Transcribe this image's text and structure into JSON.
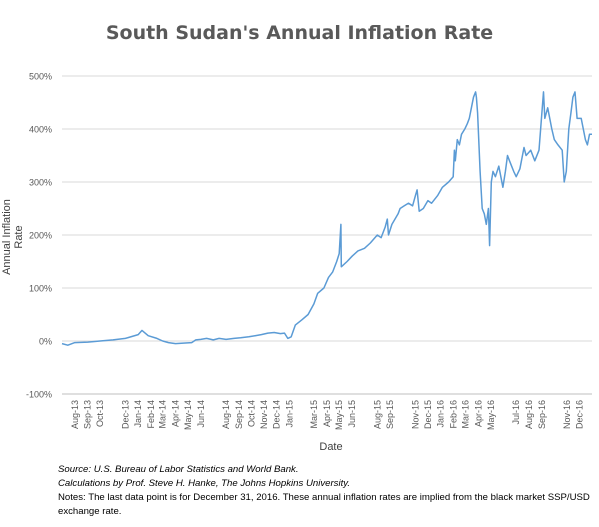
{
  "chart_data": {
    "type": "line",
    "title": "South Sudan's Annual Inflation Rate",
    "xlabel": "Date",
    "ylabel": "Annual Inflation Rate",
    "ylim": [
      -100,
      500
    ],
    "y_ticks": [
      "-100%",
      "0%",
      "100%",
      "200%",
      "300%",
      "400%",
      "500%"
    ],
    "y_tick_values": [
      -100,
      0,
      100,
      200,
      300,
      400,
      500
    ],
    "x_ticks": [
      "Aug-13",
      "Sep-13",
      "Oct-13",
      "Dec-13",
      "Jan-14",
      "Feb-14",
      "Mar-14",
      "Apr-14",
      "May-14",
      "Jun-14",
      "Aug-14",
      "Sep-14",
      "Oct-14",
      "Nov-14",
      "Dec-14",
      "Jan-15",
      "Mar-15",
      "Apr-15",
      "May-15",
      "Jun-15",
      "Aug-15",
      "Sep-15",
      "Nov-15",
      "Dec-15",
      "Jan-16",
      "Feb-16",
      "Mar-16",
      "Apr-16",
      "May-16",
      "Jul-16",
      "Aug-16",
      "Sep-16",
      "Nov-16",
      "Dec-16"
    ],
    "x_tick_dates": [
      "2013-08-01",
      "2013-09-01",
      "2013-10-01",
      "2013-12-01",
      "2014-01-01",
      "2014-02-01",
      "2014-03-01",
      "2014-04-01",
      "2014-05-01",
      "2014-06-01",
      "2014-08-01",
      "2014-09-01",
      "2014-10-01",
      "2014-11-01",
      "2014-12-01",
      "2015-01-01",
      "2015-03-01",
      "2015-04-01",
      "2015-05-01",
      "2015-06-01",
      "2015-08-01",
      "2015-09-01",
      "2015-11-01",
      "2015-12-01",
      "2016-01-01",
      "2016-02-01",
      "2016-03-01",
      "2016-04-01",
      "2016-05-01",
      "2016-07-01",
      "2016-08-01",
      "2016-09-01",
      "2016-11-01",
      "2016-12-01"
    ],
    "x_range": [
      "2013-07-01",
      "2016-12-31"
    ],
    "grid": true,
    "series": [
      {
        "color": "#5b9bd5",
        "points": [
          [
            "2013-07-01",
            -5
          ],
          [
            "2013-07-15",
            -8
          ],
          [
            "2013-08-01",
            -3
          ],
          [
            "2013-09-01",
            -2
          ],
          [
            "2013-10-01",
            0
          ],
          [
            "2013-11-01",
            2
          ],
          [
            "2013-12-01",
            5
          ],
          [
            "2014-01-01",
            12
          ],
          [
            "2014-01-10",
            20
          ],
          [
            "2014-01-25",
            10
          ],
          [
            "2014-02-15",
            5
          ],
          [
            "2014-03-01",
            0
          ],
          [
            "2014-03-15",
            -3
          ],
          [
            "2014-04-01",
            -5
          ],
          [
            "2014-04-20",
            -4
          ],
          [
            "2014-05-10",
            -3
          ],
          [
            "2014-05-20",
            2
          ],
          [
            "2014-06-01",
            3
          ],
          [
            "2014-06-15",
            5
          ],
          [
            "2014-07-01",
            2
          ],
          [
            "2014-07-15",
            5
          ],
          [
            "2014-08-01",
            3
          ],
          [
            "2014-08-20",
            5
          ],
          [
            "2014-09-05",
            6
          ],
          [
            "2014-09-25",
            8
          ],
          [
            "2014-10-10",
            10
          ],
          [
            "2014-10-25",
            12
          ],
          [
            "2014-11-10",
            15
          ],
          [
            "2014-11-25",
            16
          ],
          [
            "2014-12-10",
            14
          ],
          [
            "2014-12-20",
            15
          ],
          [
            "2014-12-28",
            5
          ],
          [
            "2015-01-05",
            8
          ],
          [
            "2015-01-15",
            30
          ],
          [
            "2015-01-31",
            40
          ],
          [
            "2015-02-15",
            50
          ],
          [
            "2015-03-01",
            70
          ],
          [
            "2015-03-10",
            90
          ],
          [
            "2015-03-25",
            100
          ],
          [
            "2015-04-05",
            120
          ],
          [
            "2015-04-15",
            130
          ],
          [
            "2015-04-25",
            150
          ],
          [
            "2015-05-01",
            165
          ],
          [
            "2015-05-05",
            220
          ],
          [
            "2015-05-06",
            140
          ],
          [
            "2015-05-20",
            150
          ],
          [
            "2015-06-01",
            160
          ],
          [
            "2015-06-15",
            170
          ],
          [
            "2015-07-01",
            175
          ],
          [
            "2015-07-15",
            185
          ],
          [
            "2015-08-01",
            200
          ],
          [
            "2015-08-10",
            195
          ],
          [
            "2015-08-20",
            215
          ],
          [
            "2015-08-25",
            230
          ],
          [
            "2015-08-28",
            200
          ],
          [
            "2015-09-05",
            220
          ],
          [
            "2015-09-20",
            240
          ],
          [
            "2015-09-25",
            250
          ],
          [
            "2015-10-05",
            255
          ],
          [
            "2015-10-15",
            260
          ],
          [
            "2015-10-25",
            255
          ],
          [
            "2015-11-01",
            275
          ],
          [
            "2015-11-05",
            285
          ],
          [
            "2015-11-10",
            245
          ],
          [
            "2015-11-20",
            250
          ],
          [
            "2015-12-01",
            265
          ],
          [
            "2015-12-10",
            260
          ],
          [
            "2015-12-25",
            275
          ],
          [
            "2016-01-05",
            290
          ],
          [
            "2016-01-20",
            300
          ],
          [
            "2016-01-31",
            310
          ],
          [
            "2016-02-03",
            360
          ],
          [
            "2016-02-05",
            340
          ],
          [
            "2016-02-10",
            380
          ],
          [
            "2016-02-15",
            370
          ],
          [
            "2016-02-20",
            390
          ],
          [
            "2016-02-28",
            400
          ],
          [
            "2016-03-05",
            410
          ],
          [
            "2016-03-10",
            420
          ],
          [
            "2016-03-15",
            440
          ],
          [
            "2016-03-20",
            460
          ],
          [
            "2016-03-25",
            470
          ],
          [
            "2016-03-27",
            460
          ],
          [
            "2016-03-30",
            430
          ],
          [
            "2016-04-05",
            320
          ],
          [
            "2016-04-10",
            250
          ],
          [
            "2016-04-15",
            240
          ],
          [
            "2016-04-20",
            220
          ],
          [
            "2016-04-25",
            250
          ],
          [
            "2016-04-28",
            180
          ],
          [
            "2016-05-02",
            300
          ],
          [
            "2016-05-06",
            320
          ],
          [
            "2016-05-12",
            310
          ],
          [
            "2016-05-20",
            330
          ],
          [
            "2016-05-30",
            290
          ],
          [
            "2016-06-05",
            320
          ],
          [
            "2016-06-10",
            350
          ],
          [
            "2016-06-15",
            340
          ],
          [
            "2016-06-25",
            320
          ],
          [
            "2016-07-01",
            310
          ],
          [
            "2016-07-10",
            325
          ],
          [
            "2016-07-20",
            365
          ],
          [
            "2016-07-25",
            350
          ],
          [
            "2016-08-05",
            360
          ],
          [
            "2016-08-15",
            340
          ],
          [
            "2016-08-25",
            360
          ],
          [
            "2016-09-05",
            470
          ],
          [
            "2016-09-08",
            420
          ],
          [
            "2016-09-15",
            440
          ],
          [
            "2016-09-25",
            400
          ],
          [
            "2016-10-01",
            380
          ],
          [
            "2016-10-10",
            370
          ],
          [
            "2016-10-20",
            360
          ],
          [
            "2016-10-25",
            300
          ],
          [
            "2016-10-30",
            320
          ],
          [
            "2016-11-05",
            400
          ],
          [
            "2016-11-10",
            430
          ],
          [
            "2016-11-15",
            460
          ],
          [
            "2016-11-20",
            470
          ],
          [
            "2016-11-25",
            420
          ],
          [
            "2016-12-05",
            420
          ],
          [
            "2016-12-15",
            380
          ],
          [
            "2016-12-20",
            370
          ],
          [
            "2016-12-25",
            390
          ],
          [
            "2016-12-31",
            390
          ]
        ]
      }
    ]
  },
  "notes": {
    "source": "Source: U.S. Bureau of Labor Statistics and World Bank.",
    "calc": "Calculations by Prof. Steve H. Hanke, The Johns Hopkins University.",
    "note": "Notes: The last data point is for December 31, 2016. These annual inflation rates are implied from the black market SSP/USD exchange rate."
  },
  "colors": {
    "grid": "#d9d9d9",
    "axis_text": "#595959",
    "line": "#5b9bd5"
  }
}
